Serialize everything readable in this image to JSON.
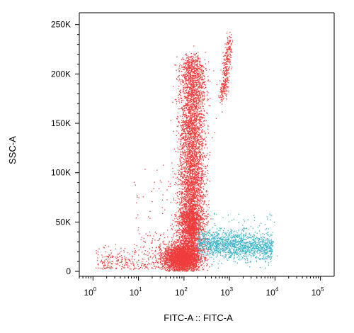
{
  "chart_data": {
    "type": "scatter",
    "title": "",
    "xlabel": "FITC-A :: FITC-A",
    "ylabel": "SSC-A",
    "x_scale": "log",
    "x_ticks": [
      {
        "value": 1,
        "base": "10",
        "exp": "0"
      },
      {
        "value": 10,
        "base": "10",
        "exp": "1"
      },
      {
        "value": 100,
        "base": "10",
        "exp": "2"
      },
      {
        "value": 1000,
        "base": "10",
        "exp": "3"
      },
      {
        "value": 10000,
        "base": "10",
        "exp": "4"
      },
      {
        "value": 100000,
        "base": "10",
        "exp": "5"
      }
    ],
    "y_ticks": [
      {
        "value": 0,
        "label": "0"
      },
      {
        "value": 50000,
        "label": "50K"
      },
      {
        "value": 100000,
        "label": "100K"
      },
      {
        "value": 150000,
        "label": "150K"
      },
      {
        "value": 200000,
        "label": "200K"
      },
      {
        "value": 250000,
        "label": "250K"
      }
    ],
    "xlim": [
      0.5,
      200000
    ],
    "ylim": [
      -5000,
      262000
    ],
    "grid": false,
    "series": [
      {
        "color": "#f03c3c",
        "point_count_approx": 9000,
        "populations": [
          {
            "description": "main column",
            "x_center": 150,
            "x_spread_decades": 0.15,
            "y_range": [
              40000,
              220000
            ]
          },
          {
            "description": "low dense cluster",
            "x_center": 90,
            "x_spread_decades": 0.2,
            "y_range": [
              5000,
              30000
            ]
          },
          {
            "description": "upper streak",
            "x_center": 850,
            "x_spread_decades": 0.1,
            "y_range": [
              180000,
              235000
            ]
          },
          {
            "description": "scattered low background",
            "x_range": [
              1,
              300
            ],
            "y_range": [
              0,
              60000
            ]
          }
        ]
      },
      {
        "color": "#3cb4c8",
        "point_count_approx": 1500,
        "populations": [
          {
            "description": "FITC-positive tail",
            "x_range": [
              200,
              9000
            ],
            "y_range": [
              15000,
              45000
            ]
          }
        ]
      }
    ]
  }
}
